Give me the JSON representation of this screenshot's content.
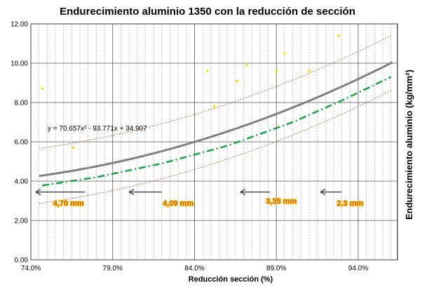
{
  "chart_data": {
    "type": "scatter",
    "title": "Endurecimiento aluminio 1350 con la reducción de sección",
    "xlabel": "Reducción sección  (%)",
    "ylabel": "Endurecimiento aluminio    (kg/mm²)",
    "xlim": [
      74.0,
      96.4
    ],
    "ylim": [
      0.0,
      12.0
    ],
    "x_ticks": [
      74.0,
      79.0,
      84.0,
      89.0,
      94.0
    ],
    "x_tick_labels": [
      "74.0%",
      "79.0%",
      "84.0%",
      "89.0%",
      "94.0%"
    ],
    "y_ticks": [
      0,
      2,
      4,
      6,
      8,
      10,
      12
    ],
    "y_tick_labels": [
      "0.00",
      "2.00",
      "4.00",
      "6.00",
      "8.00",
      "10.00",
      "12.00"
    ],
    "grid": true,
    "minor_grid_x_step": 0.5,
    "scatter_points": {
      "color": "#f2e600",
      "points": [
        {
          "x": 74.7,
          "y": 8.7
        },
        {
          "x": 76.6,
          "y": 5.7
        },
        {
          "x": 84.8,
          "y": 9.6
        },
        {
          "x": 85.2,
          "y": 7.8
        },
        {
          "x": 86.6,
          "y": 9.1
        },
        {
          "x": 87.2,
          "y": 9.9
        },
        {
          "x": 89.0,
          "y": 9.6
        },
        {
          "x": 89.5,
          "y": 10.5
        },
        {
          "x": 91.0,
          "y": 9.6
        },
        {
          "x": 92.8,
          "y": 11.4
        }
      ]
    },
    "trendline": {
      "equation_label": "y = 70.657x² - 93.771x + 34.907",
      "a": 70.657,
      "b": -93.771,
      "c": 34.907,
      "x_range": [
        74.5,
        96.2
      ],
      "color": "#808080"
    },
    "bands": {
      "color": "#a0522d",
      "offset": 1.4
    },
    "dashdot_line": {
      "color": "#1fa64a",
      "points": [
        [
          74.7,
          3.78
        ],
        [
          78.0,
          4.2
        ],
        [
          82.0,
          4.9
        ],
        [
          86.0,
          5.8
        ],
        [
          90.0,
          7.0
        ],
        [
          93.0,
          8.1
        ],
        [
          96.0,
          9.3
        ]
      ]
    },
    "annotations": [
      {
        "label": "4,70 mm",
        "x": 76.3,
        "y": 2.75,
        "arrow_from": 77.3,
        "arrow_to": 74.3,
        "arrow_y": 3.45
      },
      {
        "label": "4,09 mm",
        "x": 83.0,
        "y": 2.75,
        "arrow_from": 82.0,
        "arrow_to": 80.0,
        "arrow_y": 3.45
      },
      {
        "label": "3,35 mm",
        "x": 89.3,
        "y": 2.85,
        "arrow_from": 88.6,
        "arrow_to": 86.8,
        "arrow_y": 3.45
      },
      {
        "label": "2.3 mm",
        "x": 93.5,
        "y": 2.75,
        "arrow_from": 93.0,
        "arrow_to": 91.7,
        "arrow_y": 3.45
      }
    ]
  }
}
